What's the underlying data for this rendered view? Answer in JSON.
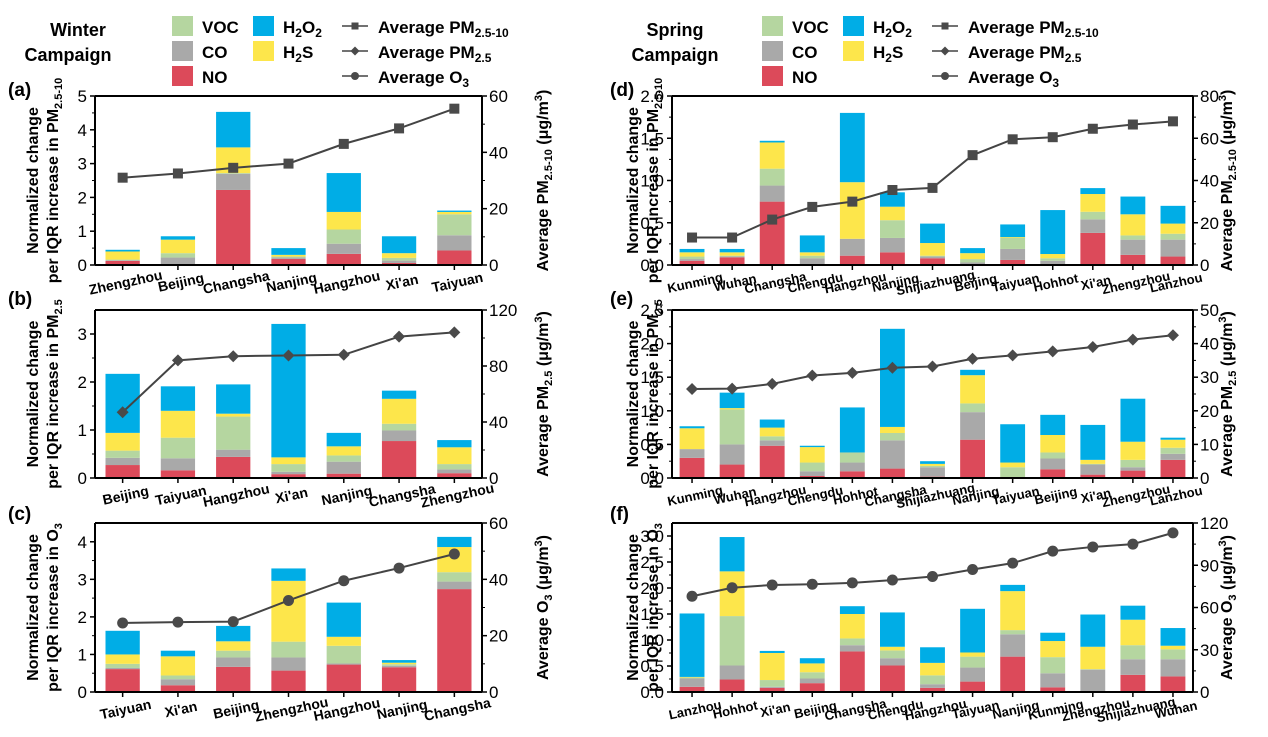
{
  "colors": {
    "VOC": "#b5d6a0",
    "CO": "#a9a9a9",
    "NO": "#dc4a5a",
    "H2O2": "#00ade6",
    "H2S": "#fde64b",
    "line": "#444444",
    "marker": "#4a4a4a"
  },
  "campaigns": [
    {
      "title_line1": "Winter",
      "title_line2": "Campaign",
      "legend": {
        "bars": [
          {
            "key": "VOC",
            "label": "VOC"
          },
          {
            "key": "H2O2",
            "label": "H",
            "sub1": "2",
            "mid": "O",
            "sub2": "2"
          },
          {
            "key": "CO",
            "label": "CO"
          },
          {
            "key": "H2S",
            "label": "H",
            "sub1": "2",
            "mid": "S",
            "sub2": ""
          },
          {
            "key": "NO",
            "label": "NO"
          }
        ],
        "lines": [
          {
            "marker": "square",
            "label": "Average PM",
            "sub": "2.5-10"
          },
          {
            "marker": "diamond",
            "label": "Average PM",
            "sub": "2.5"
          },
          {
            "marker": "circle",
            "label": "Average O",
            "sub": "3"
          }
        ]
      }
    },
    {
      "title_line1": "Spring",
      "title_line2": "Campaign",
      "legend": {
        "bars": [
          {
            "key": "VOC",
            "label": "VOC"
          },
          {
            "key": "H2O2",
            "label": "H",
            "sub1": "2",
            "mid": "O",
            "sub2": "2"
          },
          {
            "key": "CO",
            "label": "CO"
          },
          {
            "key": "H2S",
            "label": "H",
            "sub1": "2",
            "mid": "S",
            "sub2": ""
          },
          {
            "key": "NO",
            "label": "NO"
          }
        ],
        "lines": [
          {
            "marker": "square",
            "label": "Average PM",
            "sub": "2.5-10"
          },
          {
            "marker": "diamond",
            "label": "Average PM",
            "sub": "2.5"
          },
          {
            "marker": "circle",
            "label": "Average O",
            "sub": "3"
          }
        ]
      }
    }
  ],
  "chart_data": [
    {
      "panel": "(a)",
      "type": "bar",
      "stacked": true,
      "campaign": "Winter",
      "ylabel_line1": "Normalized change",
      "ylabel_line2": "per IQR increase in PM",
      "ylabel_sub": "2.5-10",
      "y2label": "Average PM",
      "y2label_sub": "2.5-10",
      "y2label_unit": " (μg/m",
      "ylim": [
        0,
        5
      ],
      "yticks": [
        0,
        1,
        2,
        3,
        4,
        5
      ],
      "ytick_labels": [
        "0",
        "1",
        "2",
        "3",
        "4",
        "5"
      ],
      "y2lim": [
        0,
        60
      ],
      "y2ticks": [
        0,
        20,
        40,
        60
      ],
      "line_marker": "square",
      "categories": [
        "Zhengzhou",
        "Beijing",
        "Changsha",
        "Nanjing",
        "Hangzhou",
        "Xi'an",
        "Taiyuan"
      ],
      "series": [
        {
          "name": "NO",
          "values": [
            0.12,
            0.0,
            2.22,
            0.18,
            0.33,
            0.06,
            0.43
          ]
        },
        {
          "name": "CO",
          "values": [
            0.02,
            0.22,
            0.48,
            0.04,
            0.3,
            0.07,
            0.45
          ]
        },
        {
          "name": "VOC",
          "values": [
            0.02,
            0.13,
            0.02,
            0.03,
            0.42,
            0.08,
            0.62
          ]
        },
        {
          "name": "H2S",
          "values": [
            0.24,
            0.4,
            0.76,
            0.05,
            0.52,
            0.14,
            0.07
          ]
        },
        {
          "name": "H2O2",
          "values": [
            0.05,
            0.1,
            1.05,
            0.2,
            1.15,
            0.5,
            0.04
          ]
        }
      ],
      "line": {
        "name": "Average PM2.5-10",
        "values": [
          31,
          32.5,
          34.5,
          36,
          43,
          48.5,
          55.5
        ]
      }
    },
    {
      "panel": "(b)",
      "type": "bar",
      "stacked": true,
      "campaign": "Winter",
      "ylabel_line1": "Normalized change",
      "ylabel_line2": "per IQR increase in PM",
      "ylabel_sub": "2.5",
      "y2label": "Average PM",
      "y2label_sub": "2.5",
      "y2label_unit": " (μg/m",
      "ylim": [
        0,
        3.5
      ],
      "yticks": [
        0,
        1,
        2,
        3
      ],
      "ytick_labels": [
        "0",
        "1",
        "2",
        "3"
      ],
      "y2lim": [
        0,
        120
      ],
      "y2ticks": [
        0,
        40,
        80,
        120
      ],
      "line_marker": "diamond",
      "categories": [
        "Beijing",
        "Taiyuan",
        "Hangzhou",
        "Xi'an",
        "Nanjing",
        "Changsha",
        "Zhengzhou"
      ],
      "series": [
        {
          "name": "NO",
          "values": [
            0.27,
            0.16,
            0.44,
            0.08,
            0.09,
            0.77,
            0.1
          ]
        },
        {
          "name": "CO",
          "values": [
            0.15,
            0.25,
            0.15,
            0.05,
            0.25,
            0.22,
            0.08
          ]
        },
        {
          "name": "VOC",
          "values": [
            0.15,
            0.43,
            0.69,
            0.16,
            0.13,
            0.14,
            0.11
          ]
        },
        {
          "name": "H2S",
          "values": [
            0.37,
            0.56,
            0.06,
            0.14,
            0.19,
            0.52,
            0.35
          ]
        },
        {
          "name": "H2O2",
          "values": [
            1.23,
            0.51,
            0.61,
            2.78,
            0.28,
            0.17,
            0.15
          ]
        }
      ],
      "line": {
        "name": "Average PM2.5",
        "values": [
          47,
          84,
          87,
          87.5,
          88,
          101,
          104
        ]
      }
    },
    {
      "panel": "(c)",
      "type": "bar",
      "stacked": true,
      "campaign": "Winter",
      "ylabel_line1": "Normalized change",
      "ylabel_line2": "per IQR increase in O",
      "ylabel_sub": "3",
      "y2label": "Average O",
      "y2label_sub": "3",
      "y2label_unit": " (μg/m",
      "ylim": [
        0,
        4.5
      ],
      "yticks": [
        0,
        1,
        2,
        3,
        4
      ],
      "ytick_labels": [
        "0",
        "1",
        "2",
        "3",
        "4"
      ],
      "y2lim": [
        0,
        60
      ],
      "y2ticks": [
        0,
        20,
        40,
        60
      ],
      "line_marker": "circle",
      "categories": [
        "Taiyuan",
        "Xi'an",
        "Beijing",
        "Zhengzhou",
        "Hangzhou",
        "Nanjing",
        "Changsha"
      ],
      "series": [
        {
          "name": "NO",
          "values": [
            0.61,
            0.18,
            0.67,
            0.57,
            0.73,
            0.66,
            2.74
          ]
        },
        {
          "name": "CO",
          "values": [
            0.03,
            0.16,
            0.25,
            0.35,
            0.03,
            0.04,
            0.2
          ]
        },
        {
          "name": "VOC",
          "values": [
            0.11,
            0.1,
            0.18,
            0.42,
            0.47,
            0.04,
            0.25
          ]
        },
        {
          "name": "H2S",
          "values": [
            0.25,
            0.51,
            0.25,
            1.62,
            0.24,
            0.04,
            0.67
          ]
        },
        {
          "name": "H2O2",
          "values": [
            0.63,
            0.15,
            0.41,
            0.33,
            0.91,
            0.07,
            0.27
          ]
        }
      ],
      "line": {
        "name": "Average O3",
        "values": [
          24.5,
          24.8,
          25,
          32.5,
          39.5,
          44,
          49
        ]
      }
    },
    {
      "panel": "(d)",
      "type": "bar",
      "stacked": true,
      "campaign": "Spring",
      "ylabel_line1": "Normalized change",
      "ylabel_line2": "per IQR increase in PM",
      "ylabel_sub": "2.5-10",
      "y2label": "Average PM",
      "y2label_sub": "2.5-10",
      "y2label_unit": " (μg/m",
      "ylim": [
        0,
        2.0
      ],
      "yticks": [
        0,
        0.5,
        1.0,
        1.5,
        2.0
      ],
      "ytick_labels": [
        "0.0",
        "0.5",
        "1.0",
        "1.5",
        "2.0"
      ],
      "y2lim": [
        0,
        80
      ],
      "y2ticks": [
        0,
        20,
        40,
        60,
        80
      ],
      "line_marker": "square",
      "categories": [
        "Kunming",
        "Wuhan",
        "Changsha",
        "Chengdu",
        "Hangzhou",
        "Nanjing",
        "Shijiazhuang",
        "Beijing",
        "Taiyuan",
        "Hohhot",
        "Xi'an",
        "Zhengzhou",
        "Lanzhou"
      ],
      "series": [
        {
          "name": "NO",
          "values": [
            0.05,
            0.09,
            0.75,
            0.01,
            0.11,
            0.15,
            0.08,
            0.01,
            0.06,
            0.01,
            0.38,
            0.12,
            0.1
          ]
        },
        {
          "name": "CO",
          "values": [
            0.02,
            0.01,
            0.19,
            0.07,
            0.2,
            0.17,
            0.02,
            0.02,
            0.13,
            0.04,
            0.16,
            0.18,
            0.2
          ]
        },
        {
          "name": "VOC",
          "values": [
            0.03,
            0.01,
            0.2,
            0.03,
            0.0,
            0.21,
            0.01,
            0.04,
            0.13,
            0.03,
            0.09,
            0.05,
            0.07
          ]
        },
        {
          "name": "H2S",
          "values": [
            0.05,
            0.04,
            0.31,
            0.04,
            0.67,
            0.16,
            0.15,
            0.07,
            0.01,
            0.05,
            0.21,
            0.25,
            0.12
          ]
        },
        {
          "name": "H2O2",
          "values": [
            0.04,
            0.04,
            0.02,
            0.2,
            0.82,
            0.17,
            0.23,
            0.06,
            0.15,
            0.52,
            0.07,
            0.21,
            0.21
          ]
        }
      ],
      "line": {
        "name": "Average PM2.5-10",
        "values": [
          13,
          13,
          21.5,
          27.5,
          30,
          35.5,
          36.5,
          52,
          59.5,
          60.5,
          64.5,
          66.5,
          68
        ]
      }
    },
    {
      "panel": "(e)",
      "type": "bar",
      "stacked": true,
      "campaign": "Spring",
      "ylabel_line1": "Normalized change",
      "ylabel_line2": "per IQR increase in PM",
      "ylabel_sub": "2.5",
      "y2label": "Average PM",
      "y2label_sub": "2.5",
      "y2label_unit": " (μg/m",
      "ylim": [
        0,
        2.5
      ],
      "yticks": [
        0,
        0.5,
        1.0,
        1.5,
        2.0,
        2.5
      ],
      "ytick_labels": [
        "0.0",
        "0.5",
        "1.0",
        "1.5",
        "2.0",
        "2.5"
      ],
      "y2lim": [
        0,
        50
      ],
      "y2ticks": [
        0,
        10,
        20,
        30,
        40,
        50
      ],
      "line_marker": "diamond",
      "categories": [
        "Kunming",
        "Wuhan",
        "Hangzhou",
        "Chengdu",
        "Hohhot",
        "Changsha",
        "Shijiazhuang",
        "Nanjing",
        "Taiyuan",
        "Beijing",
        "Xi'an",
        "Zhengzhou",
        "Lanzhou"
      ],
      "series": [
        {
          "name": "NO",
          "values": [
            0.3,
            0.2,
            0.48,
            0.03,
            0.1,
            0.14,
            0.02,
            0.57,
            0.0,
            0.13,
            0.05,
            0.11,
            0.27
          ]
        },
        {
          "name": "CO",
          "values": [
            0.13,
            0.3,
            0.08,
            0.07,
            0.13,
            0.42,
            0.14,
            0.41,
            0.01,
            0.16,
            0.15,
            0.05,
            0.09
          ]
        },
        {
          "name": "VOC",
          "values": [
            0.0,
            0.52,
            0.06,
            0.13,
            0.15,
            0.11,
            0.02,
            0.13,
            0.15,
            0.09,
            0.01,
            0.11,
            0.09
          ]
        },
        {
          "name": "H2S",
          "values": [
            0.31,
            0.02,
            0.13,
            0.23,
            0.0,
            0.09,
            0.03,
            0.42,
            0.07,
            0.26,
            0.06,
            0.27,
            0.12
          ]
        },
        {
          "name": "H2O2",
          "values": [
            0.03,
            0.23,
            0.12,
            0.02,
            0.67,
            1.46,
            0.04,
            0.08,
            0.57,
            0.3,
            0.52,
            0.64,
            0.03
          ]
        }
      ],
      "line": {
        "name": "Average PM2.5",
        "values": [
          26.5,
          26.6,
          28,
          30.5,
          31.3,
          32.8,
          33.2,
          35.5,
          36.5,
          37.7,
          39,
          41.2,
          42.5
        ]
      }
    },
    {
      "panel": "(f)",
      "type": "bar",
      "stacked": true,
      "campaign": "Spring",
      "ylabel_line1": "Normalized change",
      "ylabel_line2": "per IQR increase in O",
      "ylabel_sub": "3",
      "y2label": "Average O",
      "y2label_sub": "3",
      "y2label_unit": " (μg/m",
      "ylim": [
        0,
        3.25
      ],
      "yticks": [
        0,
        0.5,
        1.0,
        1.5,
        2.0,
        2.5,
        3.0
      ],
      "ytick_labels": [
        "0.0",
        "0.5",
        "1.0",
        "1.5",
        "2.0",
        "2.5",
        "3.0"
      ],
      "y2lim": [
        0,
        120
      ],
      "y2ticks": [
        0,
        30,
        60,
        90,
        120
      ],
      "line_marker": "circle",
      "categories": [
        "Lanzhou",
        "Hohhot",
        "Xi'an",
        "Beijing",
        "Changsha",
        "Chengdu",
        "Hangzhou",
        "Taiyuan",
        "Nanjing",
        "Kunming",
        "Zhengzhou",
        "Shijiazhuang",
        "Wuhan"
      ],
      "series": [
        {
          "name": "NO",
          "values": [
            0.1,
            0.24,
            0.08,
            0.17,
            0.78,
            0.51,
            0.08,
            0.2,
            0.68,
            0.09,
            0.0,
            0.33,
            0.3
          ]
        },
        {
          "name": "CO",
          "values": [
            0.16,
            0.27,
            0.02,
            0.09,
            0.12,
            0.14,
            0.07,
            0.27,
            0.43,
            0.27,
            0.43,
            0.3,
            0.33
          ]
        },
        {
          "name": "VOC",
          "values": [
            0.02,
            0.95,
            0.13,
            0.12,
            0.13,
            0.15,
            0.17,
            0.21,
            0.08,
            0.31,
            0.01,
            0.27,
            0.19
          ]
        },
        {
          "name": "H2S",
          "values": [
            0.01,
            0.86,
            0.52,
            0.17,
            0.47,
            0.07,
            0.24,
            0.08,
            0.75,
            0.31,
            0.43,
            0.49,
            0.07
          ]
        },
        {
          "name": "H2O2",
          "values": [
            1.22,
            0.66,
            0.04,
            0.1,
            0.15,
            0.66,
            0.3,
            0.84,
            0.12,
            0.16,
            0.62,
            0.27,
            0.34
          ]
        }
      ],
      "line": {
        "name": "Average O3",
        "values": [
          68,
          74,
          76,
          76.5,
          77.5,
          79.5,
          82,
          87,
          91.5,
          100,
          103,
          105,
          113
        ]
      }
    }
  ]
}
